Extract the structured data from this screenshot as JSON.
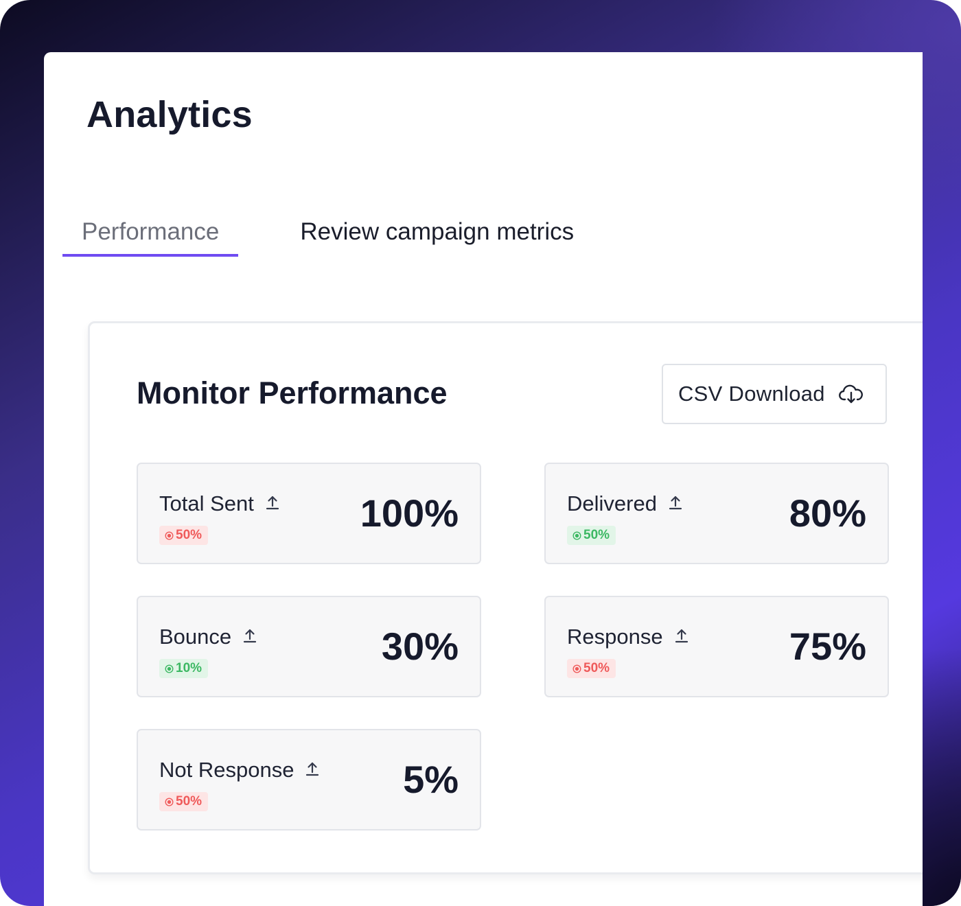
{
  "page": {
    "title": "Analytics"
  },
  "tabs": [
    {
      "label": "Performance",
      "active": true
    },
    {
      "label": "Review campaign metrics",
      "active": false
    }
  ],
  "colors": {
    "accent": "#6f4cf2",
    "negative": "#ef5a5a",
    "positive": "#3cb863"
  },
  "monitor": {
    "title": "Monitor Performance",
    "csv_button_label": "CSV Download",
    "csv_button_icon": "cloud-download-icon"
  },
  "metrics": [
    {
      "label": "Total Sent",
      "value": "100%",
      "change": "50%",
      "trend": "negative",
      "icon": "upload-icon"
    },
    {
      "label": "Delivered",
      "value": "80%",
      "change": "50%",
      "trend": "positive",
      "icon": "upload-icon"
    },
    {
      "label": "Bounce",
      "value": "30%",
      "change": "10%",
      "trend": "positive",
      "icon": "upload-icon"
    },
    {
      "label": "Response",
      "value": "75%",
      "change": "50%",
      "trend": "negative",
      "icon": "upload-icon"
    },
    {
      "label": "Not Response",
      "value": "5%",
      "change": "50%",
      "trend": "negative",
      "icon": "upload-icon"
    }
  ]
}
